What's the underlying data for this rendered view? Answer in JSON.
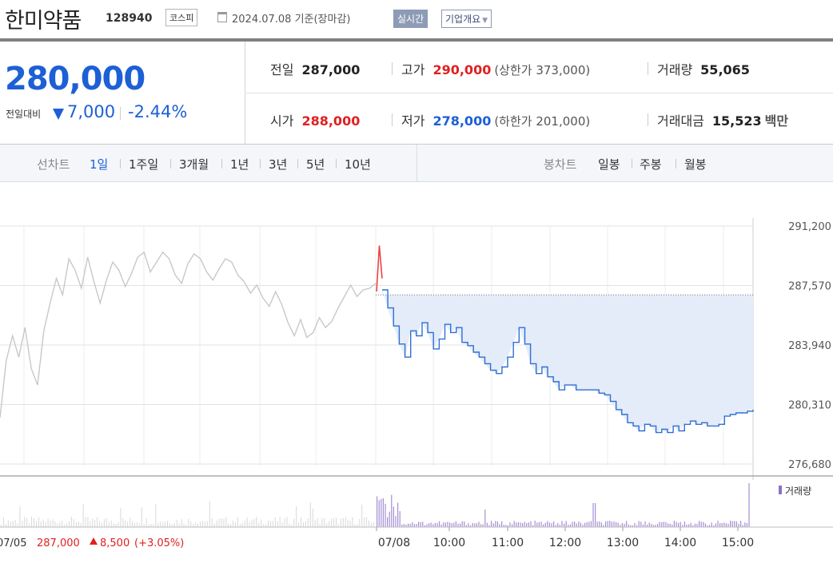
{
  "header": {
    "stock_name": "한미약품",
    "stock_code": "128940",
    "market": "코스피",
    "date": "2024.07.08 기준(장마감)",
    "realtime": "실시간",
    "overview": "기업개요"
  },
  "summary": {
    "price": "280,000",
    "change_label": "전일대비",
    "change": "7,000",
    "change_pct": "-2.44%",
    "prev_close_label": "전일",
    "prev_close": "287,000",
    "high_label": "고가",
    "high": "290,000",
    "upper_limit_label": "(상한가 373,000)",
    "volume_label": "거래량",
    "volume": "55,065",
    "open_label": "시가",
    "open": "288,000",
    "low_label": "저가",
    "low": "278,000",
    "lower_limit_label": "(하한가 201,000)",
    "turnover_label": "거래대금",
    "turnover": "15,523",
    "turnover_unit": "백만"
  },
  "periods": {
    "title": "선차트",
    "tabs": [
      "1일",
      "1주일",
      "3개월",
      "1년",
      "3년",
      "5년",
      "10년"
    ],
    "active": 0
  },
  "candles": {
    "title": "봉차트",
    "tabs": [
      "일봉",
      "주봉",
      "월봉"
    ]
  },
  "chart_data": {
    "type": "line",
    "y_ticks": [
      291200,
      287570,
      283940,
      280310,
      276680
    ],
    "y_tick_labels": [
      "291,200",
      "287,570",
      "283,940",
      "280,310",
      "276,680"
    ],
    "ylim": [
      276680,
      291200
    ],
    "x_tick_labels": [
      "07/08",
      "10:00",
      "11:00",
      "12:00",
      "13:00",
      "14:00",
      "15:00"
    ],
    "prev_close": 287000,
    "prev_day": {
      "label": "07/05",
      "close": "287,000",
      "change": "8,500",
      "change_pct": "(+3.05%)",
      "values": [
        279500,
        283000,
        284500,
        283200,
        285000,
        282500,
        281500,
        284800,
        286500,
        288000,
        287000,
        289200,
        288500,
        287400,
        289300,
        287800,
        286500,
        287900,
        289000,
        288500,
        287500,
        288300,
        289300,
        289600,
        288400,
        289000,
        289600,
        289200,
        288200,
        287700,
        288900,
        289500,
        289200,
        288400,
        287900,
        288600,
        289200,
        289000,
        288200,
        287800,
        287100,
        287600,
        286800,
        286300,
        287200,
        286400,
        285300,
        284500,
        285500,
        284400,
        284700,
        285600,
        285000,
        285400,
        286200,
        286900,
        287600,
        286900,
        287300,
        287400,
        287700
      ]
    },
    "today": {
      "label": "07/08",
      "spike_values": [
        287200,
        290000,
        288000
      ],
      "values": [
        287300,
        286200,
        285100,
        284000,
        283200,
        284800,
        284500,
        285300,
        284700,
        283700,
        284300,
        285200,
        284700,
        285000,
        284100,
        283900,
        283500,
        283200,
        282800,
        282400,
        282200,
        282600,
        283200,
        284100,
        285000,
        284000,
        282800,
        282200,
        282600,
        282000,
        281700,
        281200,
        281500,
        281500,
        281200,
        281200,
        281200,
        281200,
        281000,
        280900,
        280500,
        280000,
        279700,
        279200,
        279000,
        278700,
        279100,
        279000,
        278600,
        278800,
        278600,
        279000,
        278700,
        279100,
        279300,
        279100,
        279200,
        279000,
        279000,
        279100,
        279600,
        279700,
        279800,
        279800,
        279900,
        280000
      ]
    },
    "volume_label": "거래량"
  }
}
